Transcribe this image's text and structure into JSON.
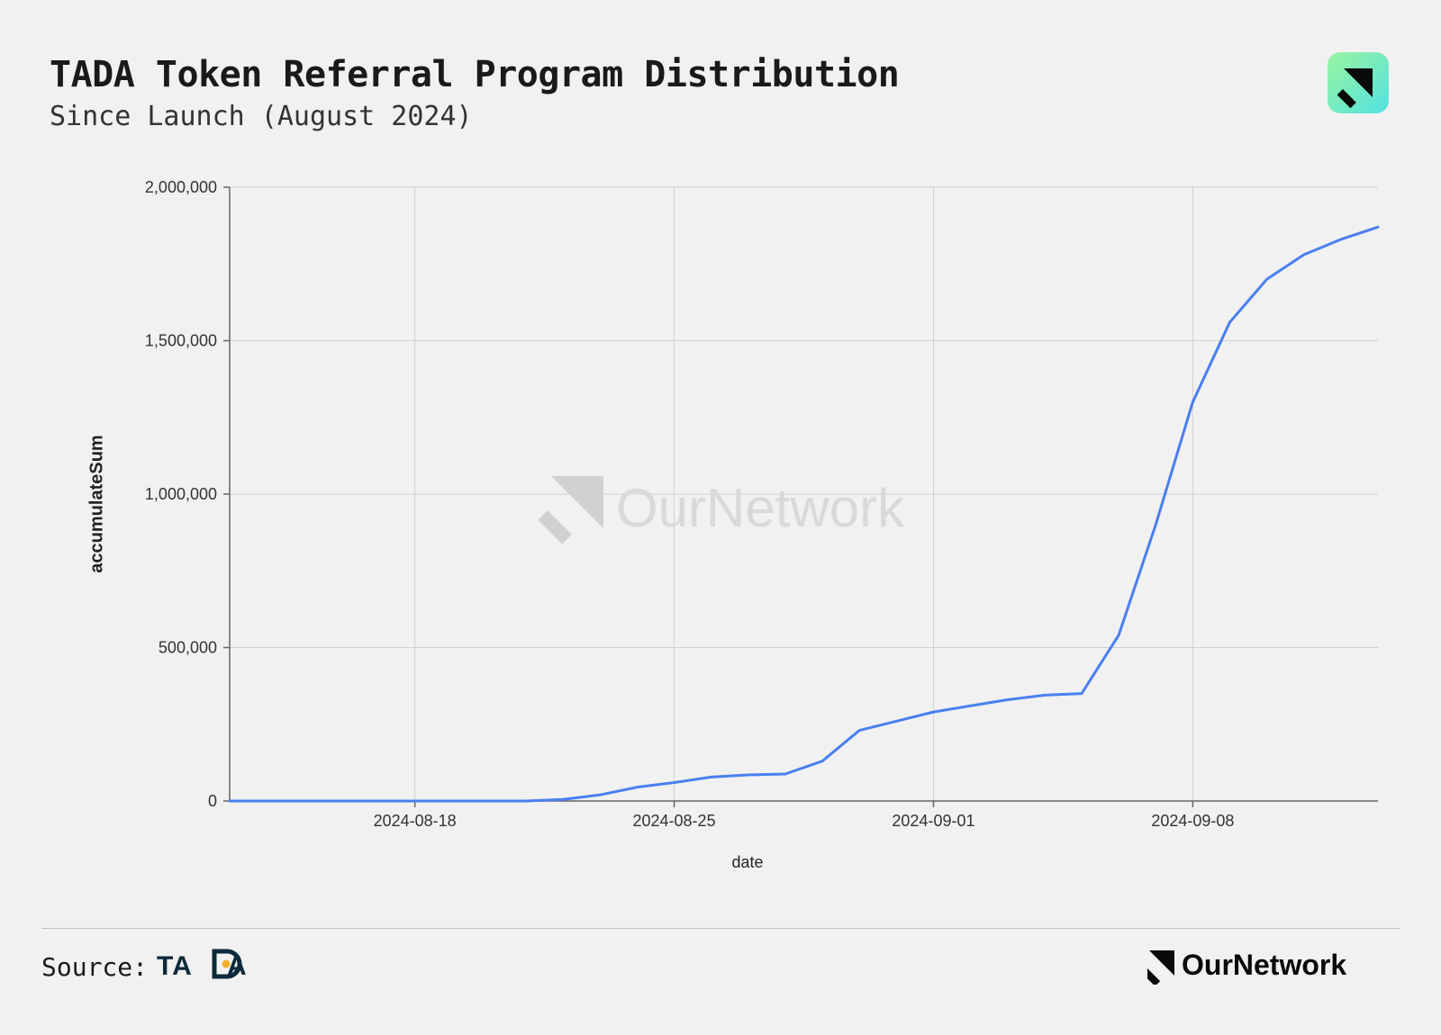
{
  "header": {
    "title": "TADA Token Referral Program Distribution",
    "subtitle": "Since Launch (August 2024)"
  },
  "chart": {
    "type": "line",
    "line_color": "#4a7ff0",
    "line_width": 3,
    "background_color": "#f1f1f1",
    "grid_color": "#d0d0d0",
    "axis_color": "#666666",
    "tick_fontsize": 18,
    "axis_label_fontsize": 20,
    "ylabel": "accumulateSum",
    "xlabel": "date",
    "ylim": [
      0,
      2000000
    ],
    "ytick_step": 500000,
    "yticks": [
      0,
      500000,
      1000000,
      1500000,
      2000000
    ],
    "ytick_labels": [
      "0",
      "500,000",
      "1,000,000",
      "1,500,000",
      "2,000,000"
    ],
    "x_start": "2024-08-13",
    "x_end": "2024-09-13",
    "xticks_days": [
      5,
      12,
      19,
      26
    ],
    "xtick_labels": [
      "2024-08-18",
      "2024-08-25",
      "2024-09-01",
      "2024-09-08"
    ],
    "series": {
      "days": [
        0,
        1,
        2,
        3,
        4,
        5,
        6,
        7,
        8,
        9,
        10,
        11,
        12,
        13,
        14,
        15,
        16,
        17,
        18,
        19,
        20,
        21,
        22,
        23,
        24,
        25,
        26,
        27,
        28,
        29,
        30,
        31
      ],
      "values": [
        0,
        0,
        0,
        0,
        0,
        0,
        0,
        0,
        0,
        5000,
        20000,
        45000,
        60000,
        78000,
        85000,
        88000,
        130000,
        230000,
        260000,
        290000,
        310000,
        330000,
        345000,
        350000,
        540000,
        900000,
        1300000,
        1560000,
        1700000,
        1780000,
        1830000,
        1870000
      ]
    }
  },
  "watermark": {
    "text": "OurNetwork",
    "color": "#d9d9d9"
  },
  "footer": {
    "source_label": "Source:",
    "source_logo_text": "TADA",
    "brand_text": "OurNetwork"
  },
  "brand": {
    "badge_gradient_start": "#9af59f",
    "badge_gradient_end": "#52e1e1",
    "badge_icon_color": "#0a0a0a"
  }
}
